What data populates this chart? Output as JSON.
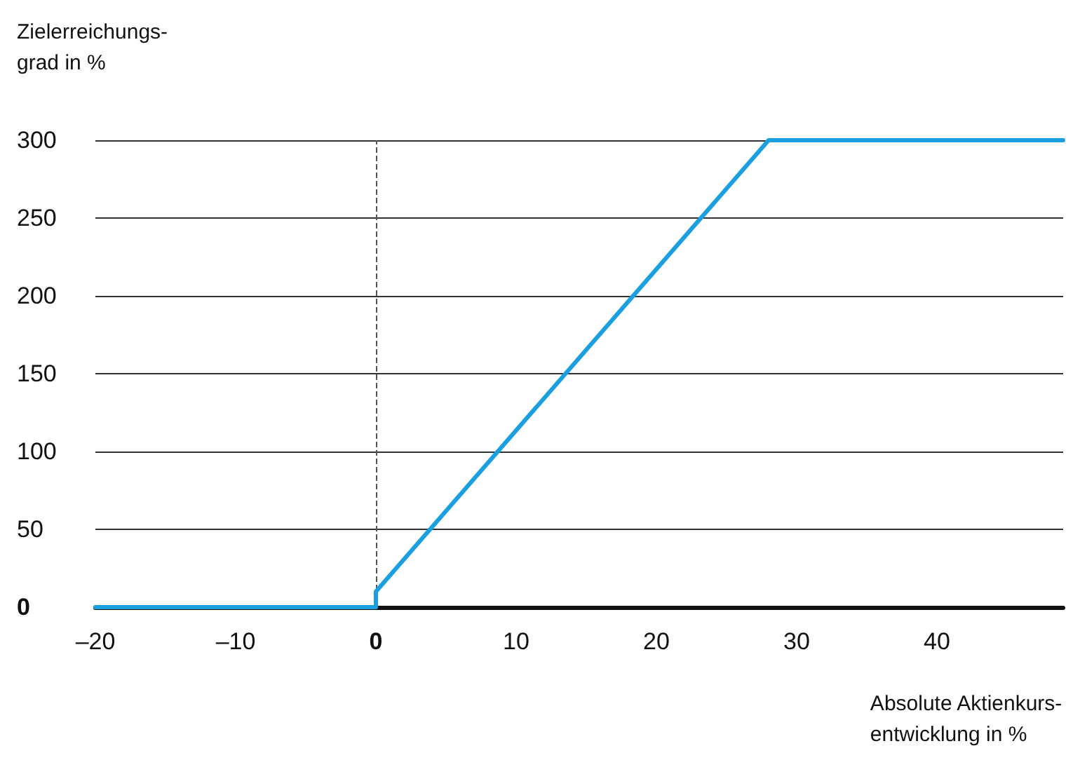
{
  "chart_data": {
    "type": "line",
    "xlabel": "Absolute Aktienkurs-\nentwicklung in %",
    "ylabel": "Zielerreichungs-\ngrad in %",
    "series": [
      {
        "color": "#1a9fe0",
        "x": [
          -20,
          0,
          0,
          28,
          49
        ],
        "values": [
          0,
          0,
          10,
          300,
          300
        ]
      }
    ],
    "xlim": [
      -20,
      49
    ],
    "ylim": [
      0,
      300
    ],
    "xticks": [
      {
        "value": -20,
        "label": "–20"
      },
      {
        "value": -10,
        "label": "–10"
      },
      0,
      10,
      20,
      30,
      40
    ],
    "yticks": [
      0,
      50,
      100,
      150,
      200,
      250,
      300
    ],
    "ref_lines": [
      {
        "axis": "x",
        "value": 0,
        "label": null,
        "color": "#555555",
        "line_style": "dashed"
      }
    ],
    "grid": "y",
    "marker": "none",
    "line_style": "solid"
  }
}
